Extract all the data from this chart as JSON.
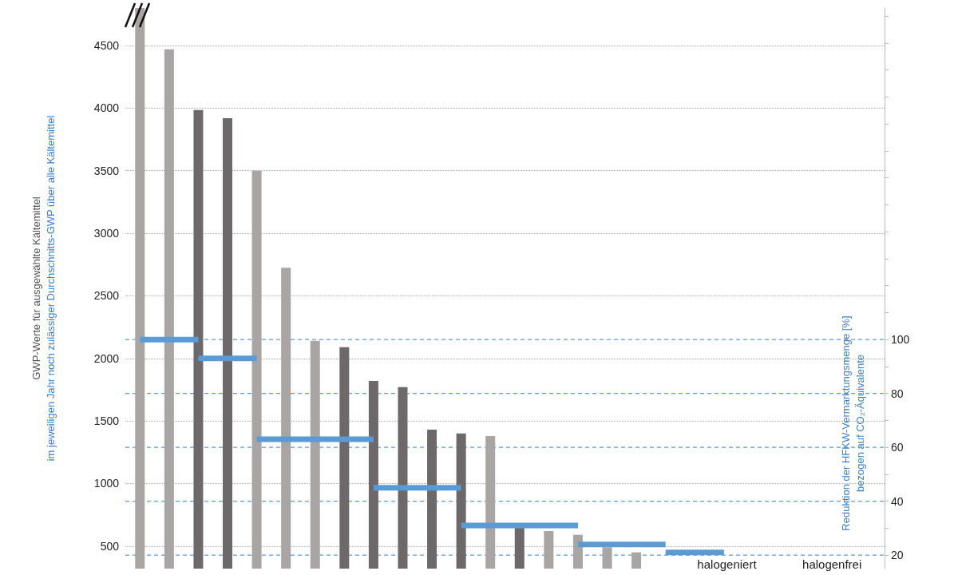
{
  "chart_data": {
    "type": "bar",
    "ylabel": "GWP-Werte für ausgewählte Kältemittel\nim jeweiligen Jahr noch zulässiger Durchschnitts-GWP über alle Kältemittel",
    "y2label": "Reduktion der HFKW-Vermarktungsmenge [%]\nbezogen auf CO₂-Äquivalente",
    "annotations": [
      "halogeniert",
      "halogenfrei"
    ],
    "categories": [
      null,
      null,
      null,
      null,
      null,
      null,
      null,
      null,
      null,
      null,
      null,
      null,
      null,
      null,
      null,
      null,
      null,
      null,
      null,
      null,
      null,
      null,
      null,
      null,
      null,
      null
    ],
    "series": [
      {
        "values": [
          4800,
          4470,
          3985,
          3920,
          3500,
          2725,
          2140,
          2090,
          1820,
          1770,
          1430,
          1400,
          1380,
          650,
          620,
          590,
          490,
          450,
          null,
          null,
          null,
          null,
          null,
          null,
          null,
          null
        ],
        "colors": [
          "#aaa5a5",
          "#aaa5a5",
          "#6d6869",
          "#6d6869",
          "#aaa5a5",
          "#aaa5a5",
          "#aaa5a5",
          "#6d6869",
          "#6d6869",
          "#6d6869",
          "#6d6869",
          "#6d6869",
          "#aaa5a5",
          "#6d6869",
          "#aaa5a5",
          "#aaa5a5",
          "#aaa5a5",
          "#aaa5a5",
          null,
          null,
          null,
          null,
          null,
          null,
          null,
          null
        ]
      },
      {
        "type": "line",
        "axis": "y2",
        "color": "#5b9bd5",
        "values": [
          100,
          100,
          100,
          null,
          null,
          null,
          null,
          null,
          null,
          null,
          null,
          null,
          null,
          null,
          null,
          null,
          null,
          null,
          null,
          null,
          null,
          null,
          null,
          null,
          null,
          null
        ]
      },
      {
        "type": "line",
        "axis": "y2",
        "color": "#5b9bd5",
        "values": [
          null,
          null,
          93,
          93,
          93,
          null,
          null,
          null,
          null,
          null,
          null,
          null,
          null,
          null,
          null,
          null,
          null,
          null,
          null,
          null,
          null,
          null,
          null,
          null,
          null,
          null
        ]
      },
      {
        "type": "line",
        "axis": "y2",
        "color": "#5b9bd5",
        "values": [
          null,
          null,
          null,
          null,
          63,
          63,
          63,
          63,
          63,
          null,
          null,
          null,
          null,
          null,
          null,
          null,
          null,
          null,
          null,
          null,
          null,
          null,
          null,
          null,
          null,
          null
        ]
      },
      {
        "type": "line",
        "axis": "y2",
        "color": "#5b9bd5",
        "values": [
          null,
          null,
          null,
          null,
          null,
          null,
          null,
          null,
          45,
          45,
          45,
          45,
          null,
          null,
          null,
          null,
          null,
          null,
          null,
          null,
          null,
          null,
          null,
          null,
          null,
          null
        ]
      },
      {
        "type": "line",
        "axis": "y2",
        "color": "#5b9bd5",
        "values": [
          null,
          null,
          null,
          null,
          null,
          null,
          null,
          null,
          null,
          null,
          null,
          31,
          31,
          31,
          31,
          31,
          null,
          null,
          null,
          null,
          null,
          null,
          null,
          null,
          null,
          null
        ]
      },
      {
        "type": "line",
        "axis": "y2",
        "color": "#5b9bd5",
        "values": [
          null,
          null,
          null,
          null,
          null,
          null,
          null,
          null,
          null,
          null,
          null,
          null,
          null,
          null,
          null,
          24,
          24,
          24,
          24,
          null,
          null,
          null,
          null,
          null,
          null,
          null
        ]
      },
      {
        "type": "line",
        "axis": "y2",
        "color": "#5b9bd5",
        "values": [
          null,
          null,
          null,
          null,
          null,
          null,
          null,
          null,
          null,
          null,
          null,
          null,
          null,
          null,
          null,
          null,
          null,
          null,
          21,
          21,
          21,
          null,
          null,
          null,
          null,
          null
        ]
      }
    ],
    "ylim": [
      320,
      4800
    ],
    "yticks": [
      500,
      1000,
      1500,
      2000,
      2500,
      3000,
      3500,
      4000,
      4500
    ],
    "y2lim": [
      15,
      223
    ],
    "y2ticks": [
      20,
      {
        "value": 30,
        "label": null
      },
      40,
      {
        "value": 50,
        "label": null
      },
      60,
      {
        "value": 70,
        "label": null
      },
      80,
      {
        "value": 90,
        "label": null
      },
      100,
      {
        "value": 110,
        "label": null
      },
      {
        "value": 120,
        "label": null
      },
      {
        "value": 130,
        "label": null
      },
      {
        "value": 140,
        "label": null
      },
      {
        "value": 150,
        "label": null
      },
      {
        "value": 160,
        "label": null
      },
      {
        "value": 170,
        "label": null
      },
      {
        "value": 180,
        "label": null
      },
      {
        "value": 190,
        "label": null
      },
      {
        "value": 200,
        "label": null
      },
      {
        "value": 210,
        "label": null
      },
      {
        "value": 220,
        "label": null
      }
    ],
    "ref_lines": [
      {
        "axis": "y2",
        "value": 20,
        "color": "#5b9bd5",
        "line_style": "dashed"
      },
      {
        "axis": "y2",
        "value": 40,
        "color": "#5b9bd5",
        "line_style": "dashed"
      },
      {
        "axis": "y2",
        "value": 60,
        "color": "#5b9bd5",
        "line_style": "dashed"
      },
      {
        "axis": "y2",
        "value": 80,
        "color": "#5b9bd5",
        "line_style": "dashed"
      },
      {
        "axis": "y2",
        "value": 100,
        "color": "#5b9bd5",
        "line_style": "dashed"
      }
    ],
    "grid": "y",
    "marker": "none",
    "line_style": "solid"
  }
}
